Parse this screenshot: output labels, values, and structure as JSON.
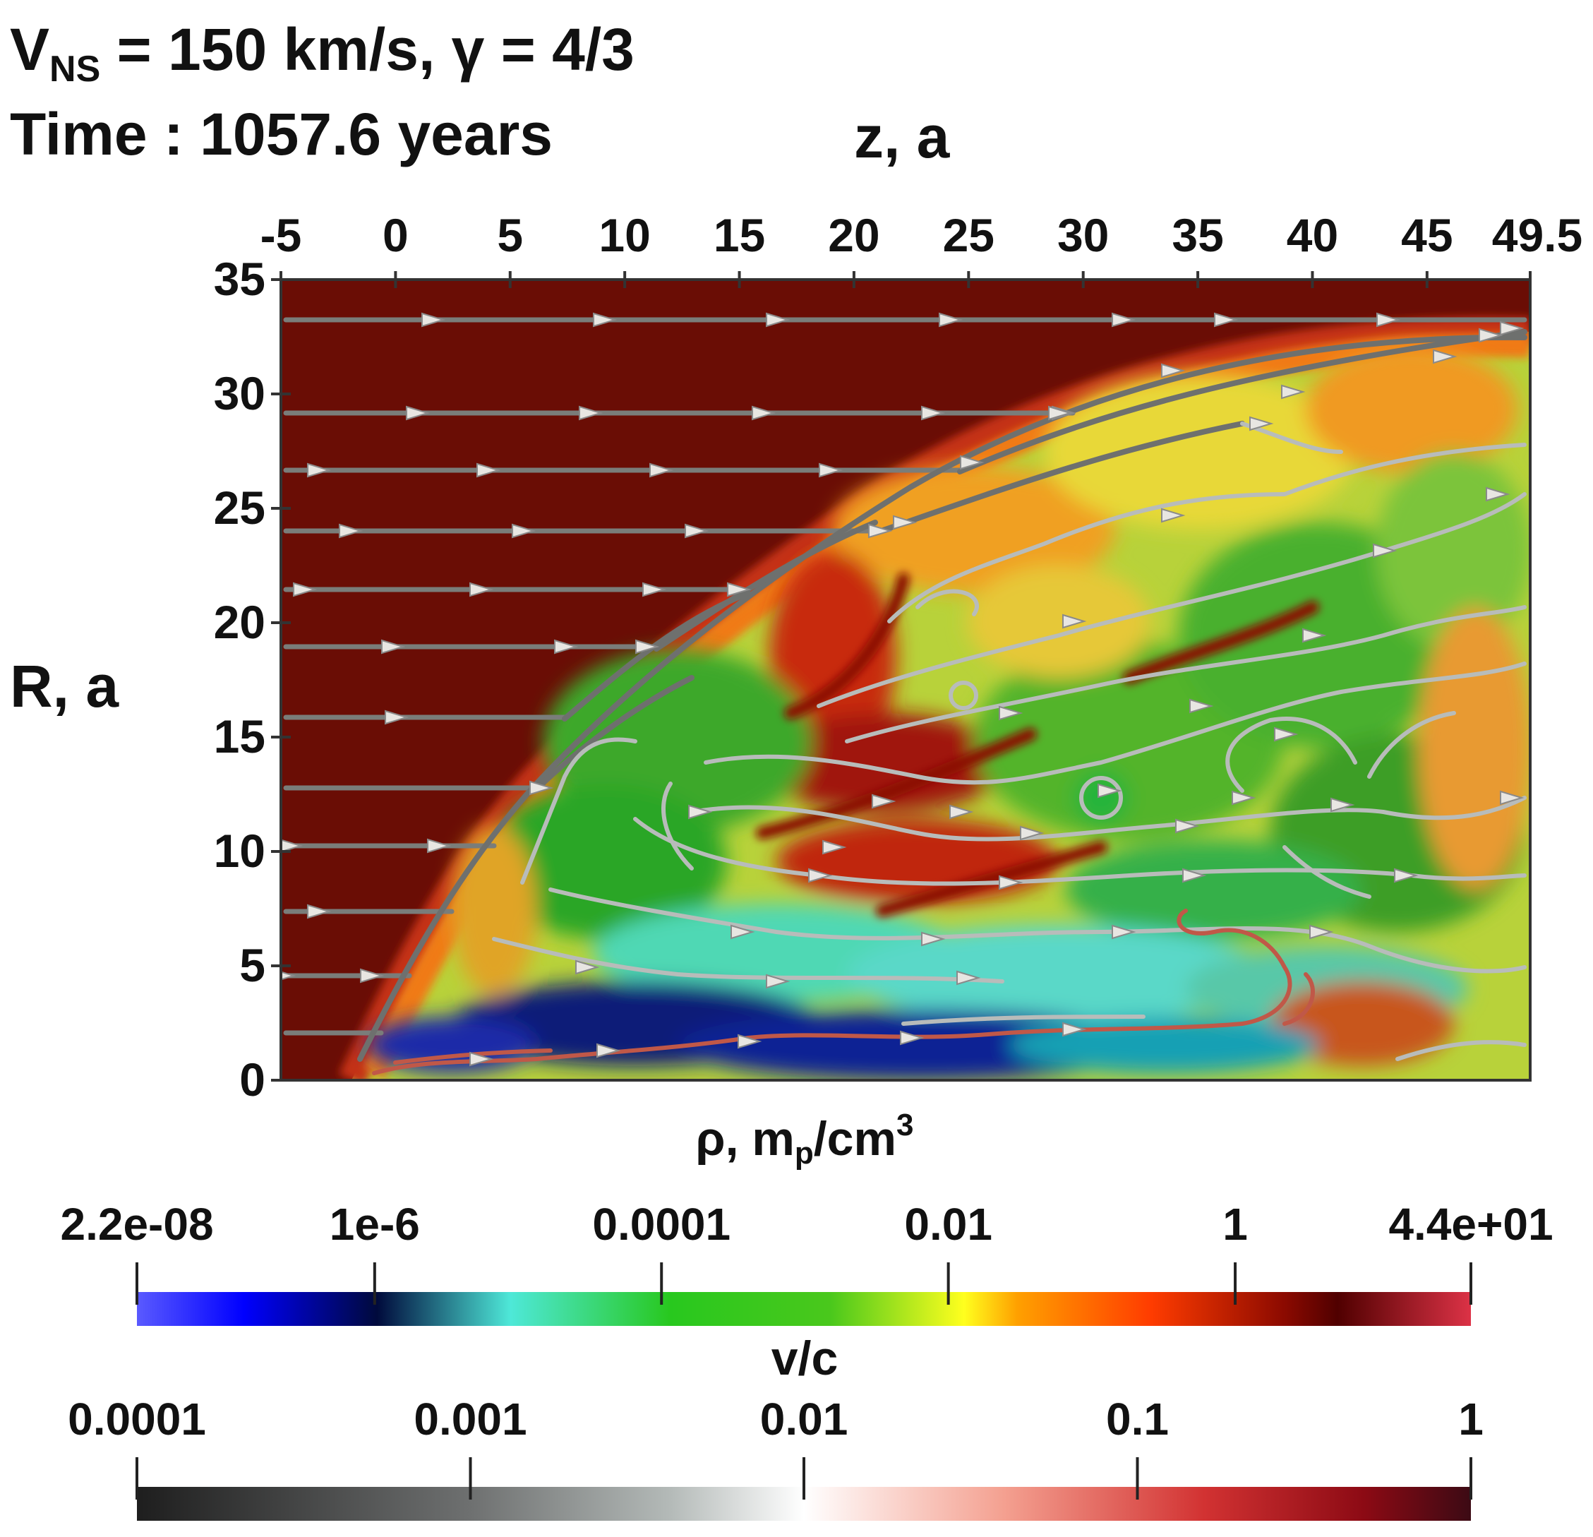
{
  "header": {
    "line1_prefix": "V",
    "line1_sub": "NS",
    "line1_rest": " = 150 km/s,  γ = 4/3",
    "line2": "Time : 1057.6 years"
  },
  "chart_data": {
    "type": "heatmap",
    "title": "",
    "xlabel": "z,  a",
    "ylabel": "R,  a",
    "xlim": [
      -5,
      49.5
    ],
    "ylim": [
      0,
      35
    ],
    "x_ticks": [
      "-5",
      "0",
      "5",
      "10",
      "15",
      "20",
      "25",
      "30",
      "35",
      "40",
      "45",
      "49.5"
    ],
    "x_tick_values": [
      -5,
      0,
      5,
      10,
      15,
      20,
      25,
      30,
      35,
      40,
      45,
      49.5
    ],
    "y_ticks": [
      "35",
      "30",
      "25",
      "20",
      "15",
      "10",
      "5",
      "0"
    ],
    "y_tick_values": [
      35,
      30,
      25,
      20,
      15,
      10,
      5,
      0
    ],
    "field": "density ρ (log colour scale)",
    "overlay": "velocity streamlines coloured by v/c",
    "colorbars": [
      {
        "name": "density",
        "title_main": "ρ, m",
        "title_sub": "p",
        "title_rest": "/cm",
        "title_sup": "3",
        "scale": "log",
        "range": [
          2.2e-08,
          44
        ],
        "tick_labels": [
          "2.2e-08",
          "1e-6",
          "0.0001",
          "0.01",
          "1",
          "4.4e+01"
        ],
        "tick_values": [
          2.2e-08,
          1e-06,
          0.0001,
          0.01,
          1,
          44
        ],
        "colors": [
          "#5a5aff",
          "#0000ff",
          "#000a3c",
          "#4ee8d8",
          "#28c81e",
          "#4ac81c",
          "#ffff1e",
          "#ffa000",
          "#ff3c00",
          "#8c0a00",
          "#500000",
          "#dc3246"
        ]
      },
      {
        "name": "speed",
        "title": "v/c",
        "scale": "log",
        "range": [
          0.0001,
          1
        ],
        "tick_labels": [
          "0.0001",
          "0.001",
          "0.01",
          "0.1",
          "1"
        ],
        "tick_values": [
          0.0001,
          0.001,
          0.01,
          0.1,
          1
        ],
        "colors": [
          "#1e1e1e",
          "#6e7070",
          "#b4bab8",
          "#ffffff",
          "#f4a090",
          "#d23232",
          "#8c0a14",
          "#3c0a14"
        ]
      }
    ]
  }
}
